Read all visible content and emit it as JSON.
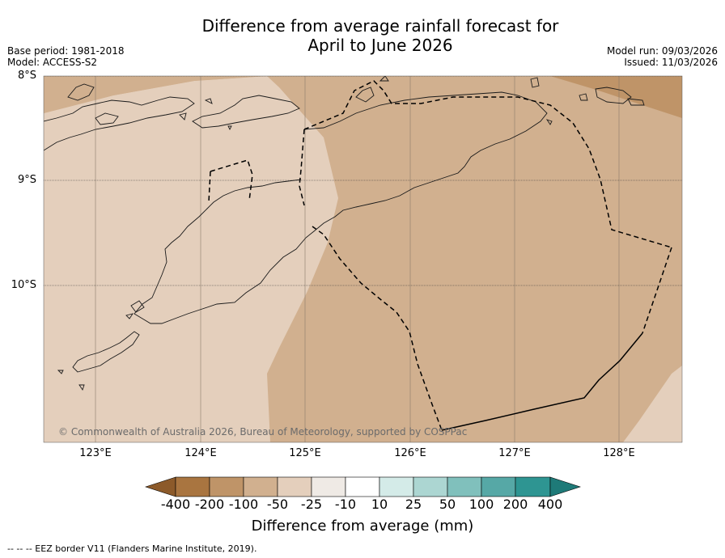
{
  "title": {
    "line1": "Difference from average rainfall forecast for",
    "line2": "April to June 2026"
  },
  "meta_left": {
    "base_period": "Base period: 1981-2018",
    "model": "Model: ACCESS-S2"
  },
  "meta_right": {
    "model_run": "Model run: 09/03/2026",
    "issued": "Issued: 11/03/2026"
  },
  "latitude_labels": [
    "8°S",
    "9°S",
    "10°S"
  ],
  "longitude_labels": [
    "123°E",
    "124°E",
    "125°E",
    "126°E",
    "127°E",
    "128°E"
  ],
  "copyright": "© Commonwealth of Australia 2026, Bureau of Meteorology, supported by COSPPac",
  "colorbar": {
    "title": "Difference from average (mm)",
    "labels": [
      "-400",
      "-200",
      "-100",
      "-50",
      "-25",
      "-10",
      "10",
      "25",
      "50",
      "100",
      "200",
      "400"
    ],
    "colors": [
      "#8c5a2a",
      "#a97540",
      "#bf9468",
      "#d1b08f",
      "#e4cfbc",
      "#efeae5",
      "#ffffff",
      "#d4ebe8",
      "#acd6d2",
      "#80c0bc",
      "#56a8a6",
      "#2e9592",
      "#1e7a78"
    ]
  },
  "map_colors": {
    "zone_minus_25": "#e4cfbc",
    "zone_minus_50": "#d1b08f",
    "zone_minus_100": "#bf9468"
  },
  "footer": "--  --  -- EEZ border V11 (Flanders Marine Institute, 2019)."
}
